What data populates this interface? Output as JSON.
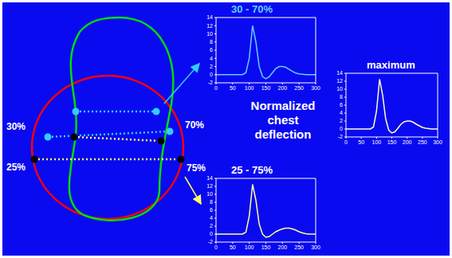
{
  "title": "Normalized chest deflection",
  "diagram": {
    "labels": {
      "left_upper": "30%",
      "right_upper": "70%",
      "left_lower": "25%",
      "right_lower": "75%"
    }
  },
  "chart_data": [
    {
      "type": "line",
      "title": "30 - 70%",
      "color": "#66ccff",
      "x": [
        0,
        10,
        20,
        30,
        40,
        50,
        60,
        70,
        80,
        90,
        100,
        110,
        120,
        130,
        140,
        150,
        160,
        170,
        180,
        190,
        200,
        210,
        220,
        230,
        240,
        250,
        260,
        270,
        280,
        290,
        300
      ],
      "values": [
        0,
        0,
        0,
        0,
        0,
        0,
        0,
        0,
        0,
        0.5,
        4,
        12,
        8,
        2,
        -0.5,
        -1,
        -0.5,
        0.5,
        1.5,
        2,
        2,
        1.8,
        1.3,
        0.8,
        0.4,
        0.2,
        0.1,
        0,
        0,
        0,
        0
      ],
      "xlim": [
        0,
        300
      ],
      "ylim": [
        -2,
        14
      ],
      "xticks": [
        0,
        50,
        100,
        150,
        200,
        250,
        300
      ],
      "yticks": [
        -2,
        0,
        2,
        4,
        6,
        8,
        10,
        12,
        14
      ]
    },
    {
      "type": "line",
      "title": "25 - 75%",
      "color": "#ffff99",
      "x": [
        0,
        10,
        20,
        30,
        40,
        50,
        60,
        70,
        80,
        90,
        100,
        110,
        120,
        130,
        140,
        150,
        160,
        170,
        180,
        190,
        200,
        210,
        220,
        230,
        240,
        250,
        260,
        270,
        280,
        290,
        300
      ],
      "values": [
        0,
        0,
        0,
        0,
        0,
        0,
        0,
        0,
        0,
        0.5,
        4.5,
        12.5,
        8.5,
        2.5,
        0,
        -0.8,
        -0.6,
        0,
        0.6,
        1,
        1.3,
        1.5,
        1.5,
        1.3,
        1,
        0.6,
        0.3,
        0.1,
        0,
        0,
        0
      ],
      "xlim": [
        0,
        300
      ],
      "ylim": [
        -2,
        14
      ],
      "xticks": [
        0,
        50,
        100,
        150,
        200,
        250,
        300
      ],
      "yticks": [
        -2,
        0,
        2,
        4,
        6,
        8,
        10,
        12,
        14
      ]
    },
    {
      "type": "line",
      "title": "maximum",
      "color": "#ffffcc",
      "x": [
        0,
        10,
        20,
        30,
        40,
        50,
        60,
        70,
        80,
        90,
        100,
        110,
        120,
        130,
        140,
        150,
        160,
        170,
        180,
        190,
        200,
        210,
        220,
        230,
        240,
        250,
        260,
        270,
        280,
        290,
        300
      ],
      "values": [
        0,
        0,
        0,
        0,
        0,
        0,
        0,
        0,
        0,
        0.5,
        4.5,
        12.5,
        8.5,
        2.5,
        -0.3,
        -1,
        -0.7,
        0.2,
        1.2,
        1.8,
        2,
        2,
        1.7,
        1.2,
        0.8,
        0.4,
        0.2,
        0.1,
        0,
        0,
        0
      ],
      "xlim": [
        0,
        300
      ],
      "ylim": [
        -2,
        14
      ],
      "xticks": [
        0,
        50,
        100,
        150,
        200,
        250,
        300
      ],
      "yticks": [
        -2,
        0,
        2,
        4,
        6,
        8,
        10,
        12,
        14
      ]
    }
  ]
}
